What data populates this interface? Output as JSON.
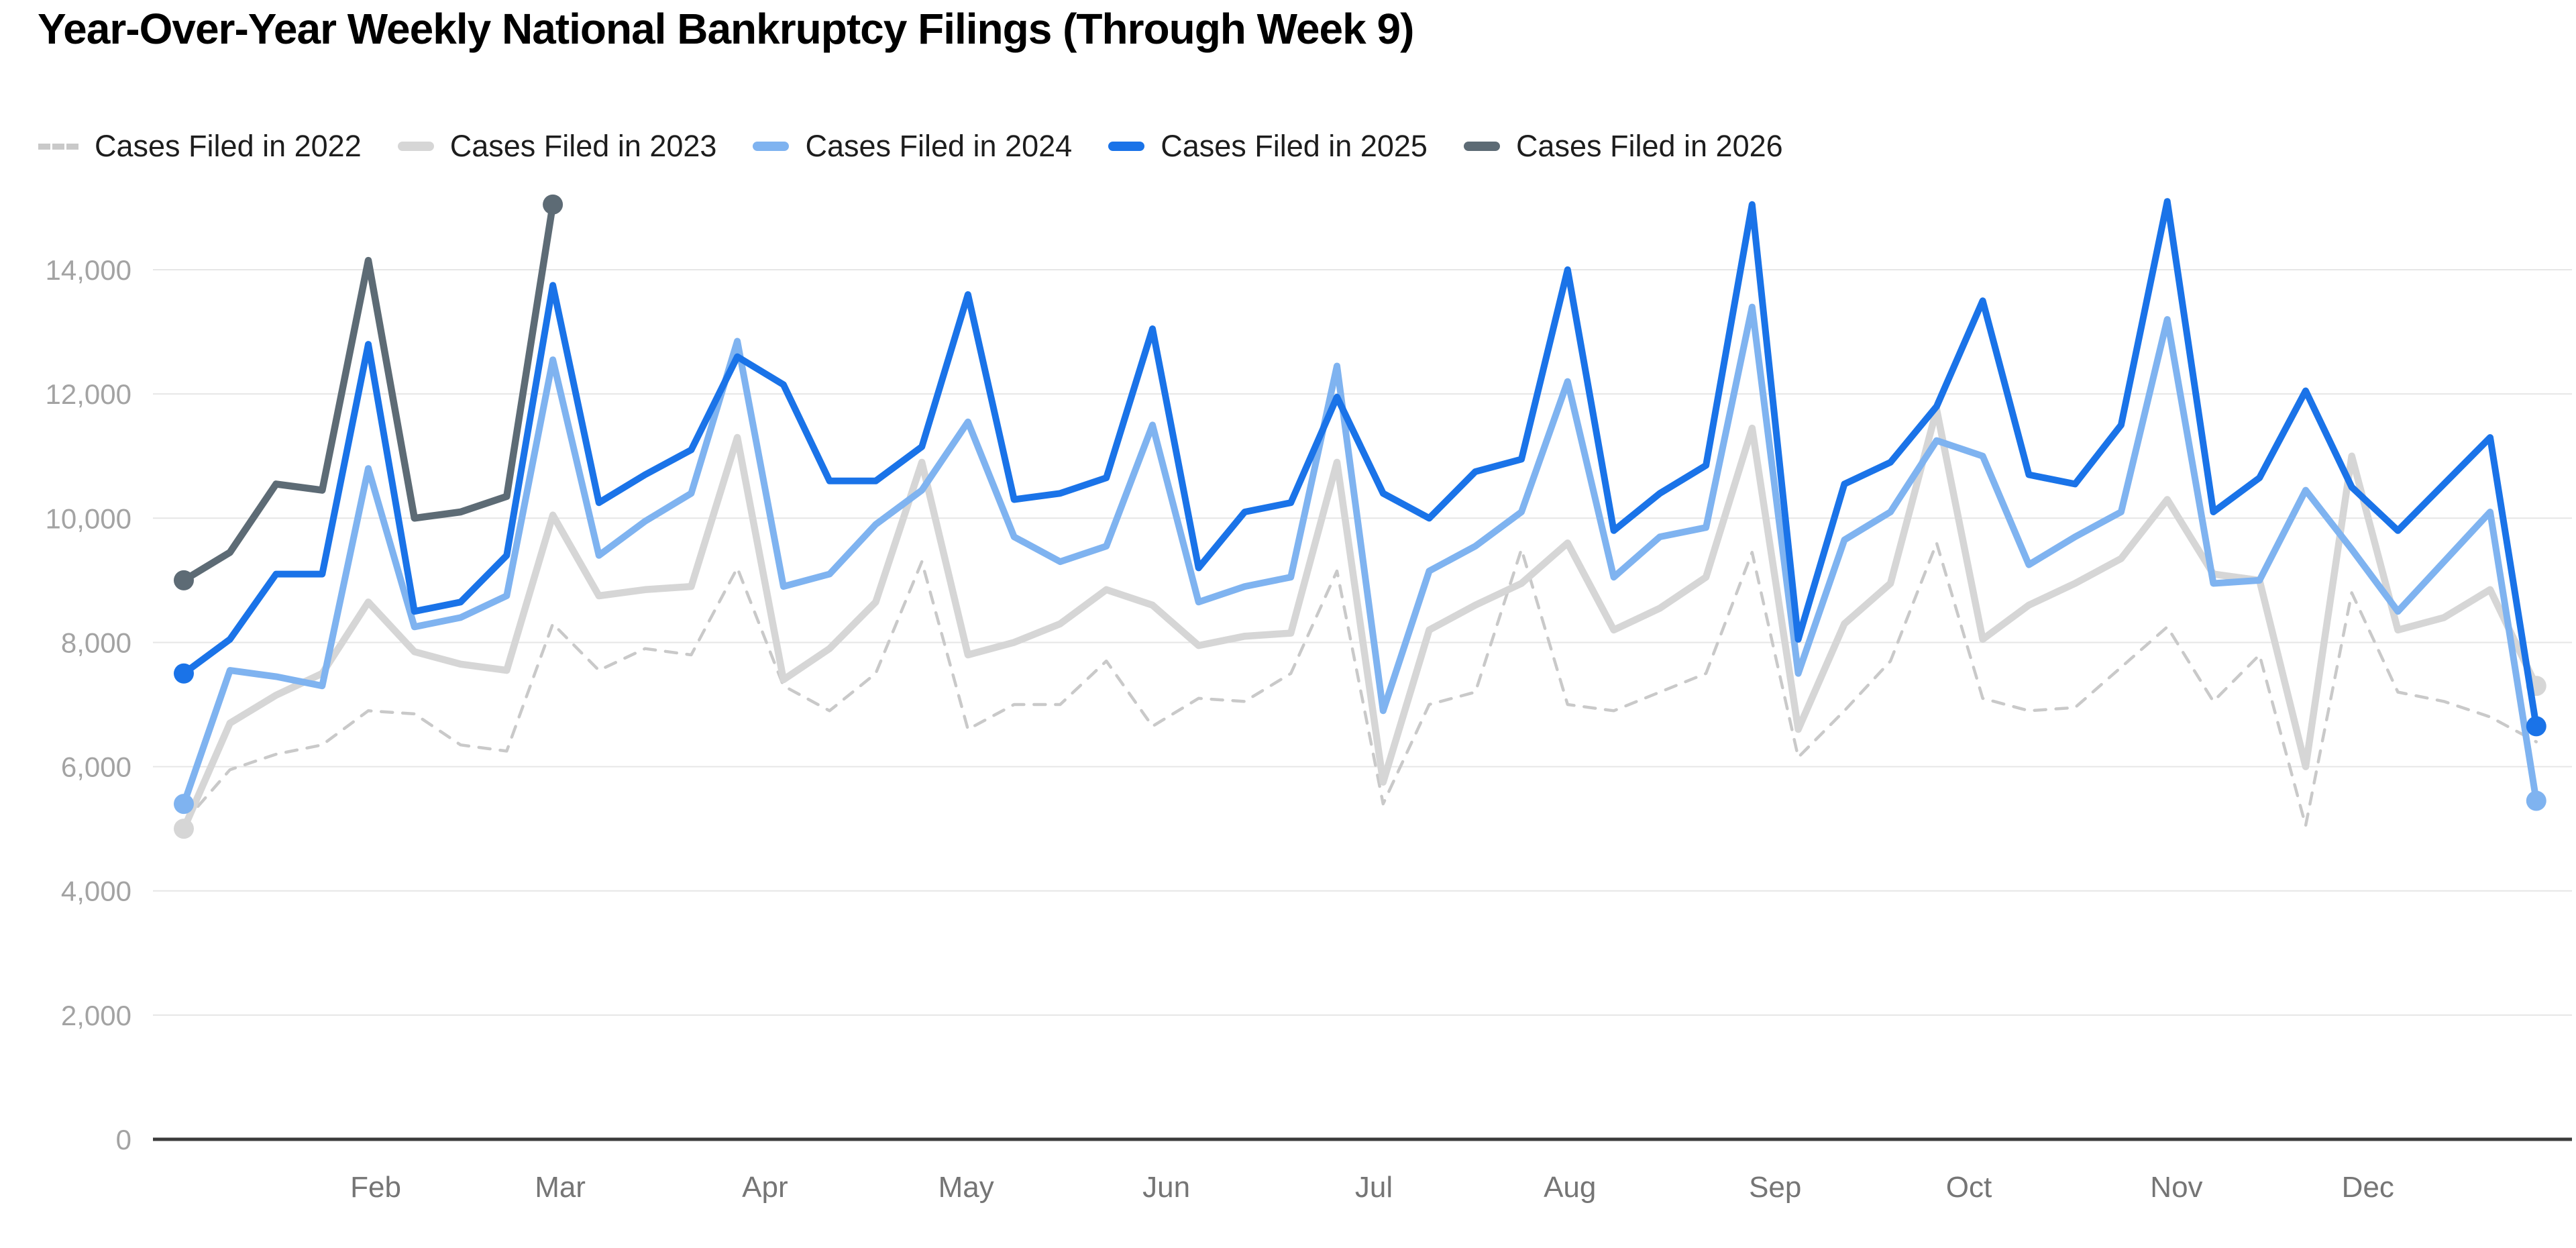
{
  "header": {
    "title": "Year-Over-Year Weekly National Bankruptcy Filings (Through Week 9)"
  },
  "legend": {
    "items": [
      {
        "label": "Cases Filed in 2022",
        "color": "#c9c9c9",
        "style": "dashed"
      },
      {
        "label": "Cases Filed in 2023",
        "color": "#d6d6d6",
        "style": "solid"
      },
      {
        "label": "Cases Filed in 2024",
        "color": "#7fb3f0",
        "style": "solid"
      },
      {
        "label": "Cases Filed in 2025",
        "color": "#1a73e8",
        "style": "solid"
      },
      {
        "label": "Cases Filed in 2026",
        "color": "#5d6b75",
        "style": "solid"
      }
    ]
  },
  "chart_data": {
    "type": "line",
    "title": "Year-Over-Year Weekly National Bankruptcy Filings (Through Week 9)",
    "xlabel": "",
    "ylabel": "",
    "x_unit": "week of year (1-52)",
    "ylim": [
      0,
      14000
    ],
    "grid": "horizontal",
    "legend_position": "top",
    "style": {
      "grid_color": "#e6e6e6",
      "axis_color": "#3c3c3c",
      "y_tick_label_color": "#a3a3a3",
      "month_label_color": "#757575",
      "background": "#ffffff"
    },
    "y_ticks": [
      {
        "value": 0,
        "label": "0"
      },
      {
        "value": 2000,
        "label": "2,000"
      },
      {
        "value": 4000,
        "label": "4,000"
      },
      {
        "value": 6000,
        "label": "6,000"
      },
      {
        "value": 8000,
        "label": "8,000"
      },
      {
        "value": 10000,
        "label": "10,000"
      },
      {
        "value": 12000,
        "label": "12,000"
      },
      {
        "value": 14000,
        "label": "14,000"
      }
    ],
    "x_month_ticks": [
      {
        "label": "Feb",
        "week": 5.16
      },
      {
        "label": "Mar",
        "week": 9.16
      },
      {
        "label": "Apr",
        "week": 13.6
      },
      {
        "label": "May",
        "week": 17.96
      },
      {
        "label": "Jun",
        "week": 22.3
      },
      {
        "label": "Jul",
        "week": 26.8
      },
      {
        "label": "Aug",
        "week": 31.05
      },
      {
        "label": "Sep",
        "week": 35.5
      },
      {
        "label": "Oct",
        "week": 39.7
      },
      {
        "label": "Nov",
        "week": 44.2
      },
      {
        "label": "Dec",
        "week": 48.35
      }
    ],
    "series": [
      {
        "name": "Cases Filed in 2022",
        "color": "#c9c9c9",
        "dashed": true,
        "line_width": 4.5,
        "end_dots": false,
        "values": [
          5100,
          5950,
          6200,
          6350,
          6900,
          6850,
          6350,
          6250,
          8300,
          7550,
          7900,
          7800,
          9200,
          7300,
          6900,
          7500,
          9300,
          6600,
          7000,
          7000,
          7700,
          6650,
          7100,
          7050,
          7500,
          9150,
          5400,
          7000,
          7200,
          9500,
          7000,
          6900,
          7200,
          7500,
          9450,
          6150,
          6900,
          7700,
          9600,
          7100,
          6900,
          6950,
          7600,
          8250,
          7050,
          7800,
          5050,
          8800,
          7200,
          7050,
          6800,
          6400
        ]
      },
      {
        "name": "Cases Filed in 2023",
        "color": "#d6d6d6",
        "dashed": false,
        "line_width": 10.5,
        "end_dots": true,
        "values": [
          5000,
          6700,
          7150,
          7500,
          8650,
          7850,
          7650,
          7550,
          10050,
          8750,
          8850,
          8900,
          11300,
          7400,
          7900,
          8650,
          10900,
          7800,
          8000,
          8300,
          8850,
          8600,
          7950,
          8100,
          8150,
          10900,
          5750,
          8200,
          8600,
          8950,
          9600,
          8200,
          8550,
          9050,
          11450,
          6600,
          8300,
          8950,
          11750,
          8050,
          8600,
          8950,
          9350,
          10300,
          9100,
          9000,
          6000,
          11000,
          8200,
          8400,
          8850,
          7300
        ]
      },
      {
        "name": "Cases Filed in 2024",
        "color": "#7fb3f0",
        "dashed": false,
        "line_width": 10,
        "end_dots": true,
        "values": [
          5400,
          7550,
          7450,
          7300,
          10800,
          8250,
          8400,
          8750,
          12550,
          9400,
          9950,
          10400,
          12850,
          8900,
          9100,
          9900,
          10450,
          11550,
          9700,
          9300,
          9550,
          11500,
          8650,
          8900,
          9050,
          12450,
          6900,
          9150,
          9550,
          10100,
          12200,
          9050,
          9700,
          9850,
          13400,
          7500,
          9650,
          10100,
          11250,
          11000,
          9250,
          9700,
          10100,
          13200,
          8950,
          9000,
          10450,
          9500,
          8500,
          9300,
          10100,
          5450
        ]
      },
      {
        "name": "Cases Filed in 2025",
        "color": "#1a73e8",
        "dashed": false,
        "line_width": 10,
        "end_dots": true,
        "values": [
          7500,
          8050,
          9100,
          9100,
          12800,
          8500,
          8650,
          9400,
          13750,
          10250,
          10700,
          11100,
          12600,
          12150,
          10600,
          10600,
          11150,
          13600,
          10300,
          10400,
          10650,
          13050,
          9200,
          10100,
          10250,
          11950,
          10400,
          10000,
          10750,
          10950,
          14000,
          9800,
          10400,
          10850,
          15050,
          8050,
          10550,
          10900,
          11800,
          13500,
          10700,
          10550,
          11500,
          15100,
          10100,
          10650,
          12050,
          10500,
          9800,
          10550,
          11300,
          6650
        ]
      },
      {
        "name": "Cases Filed in 2026",
        "color": "#5d6b75",
        "dashed": false,
        "line_width": 10.5,
        "end_dots": true,
        "values": [
          9000,
          9450,
          10550,
          10450,
          14150,
          10000,
          10100,
          10350,
          15050
        ]
      }
    ]
  }
}
